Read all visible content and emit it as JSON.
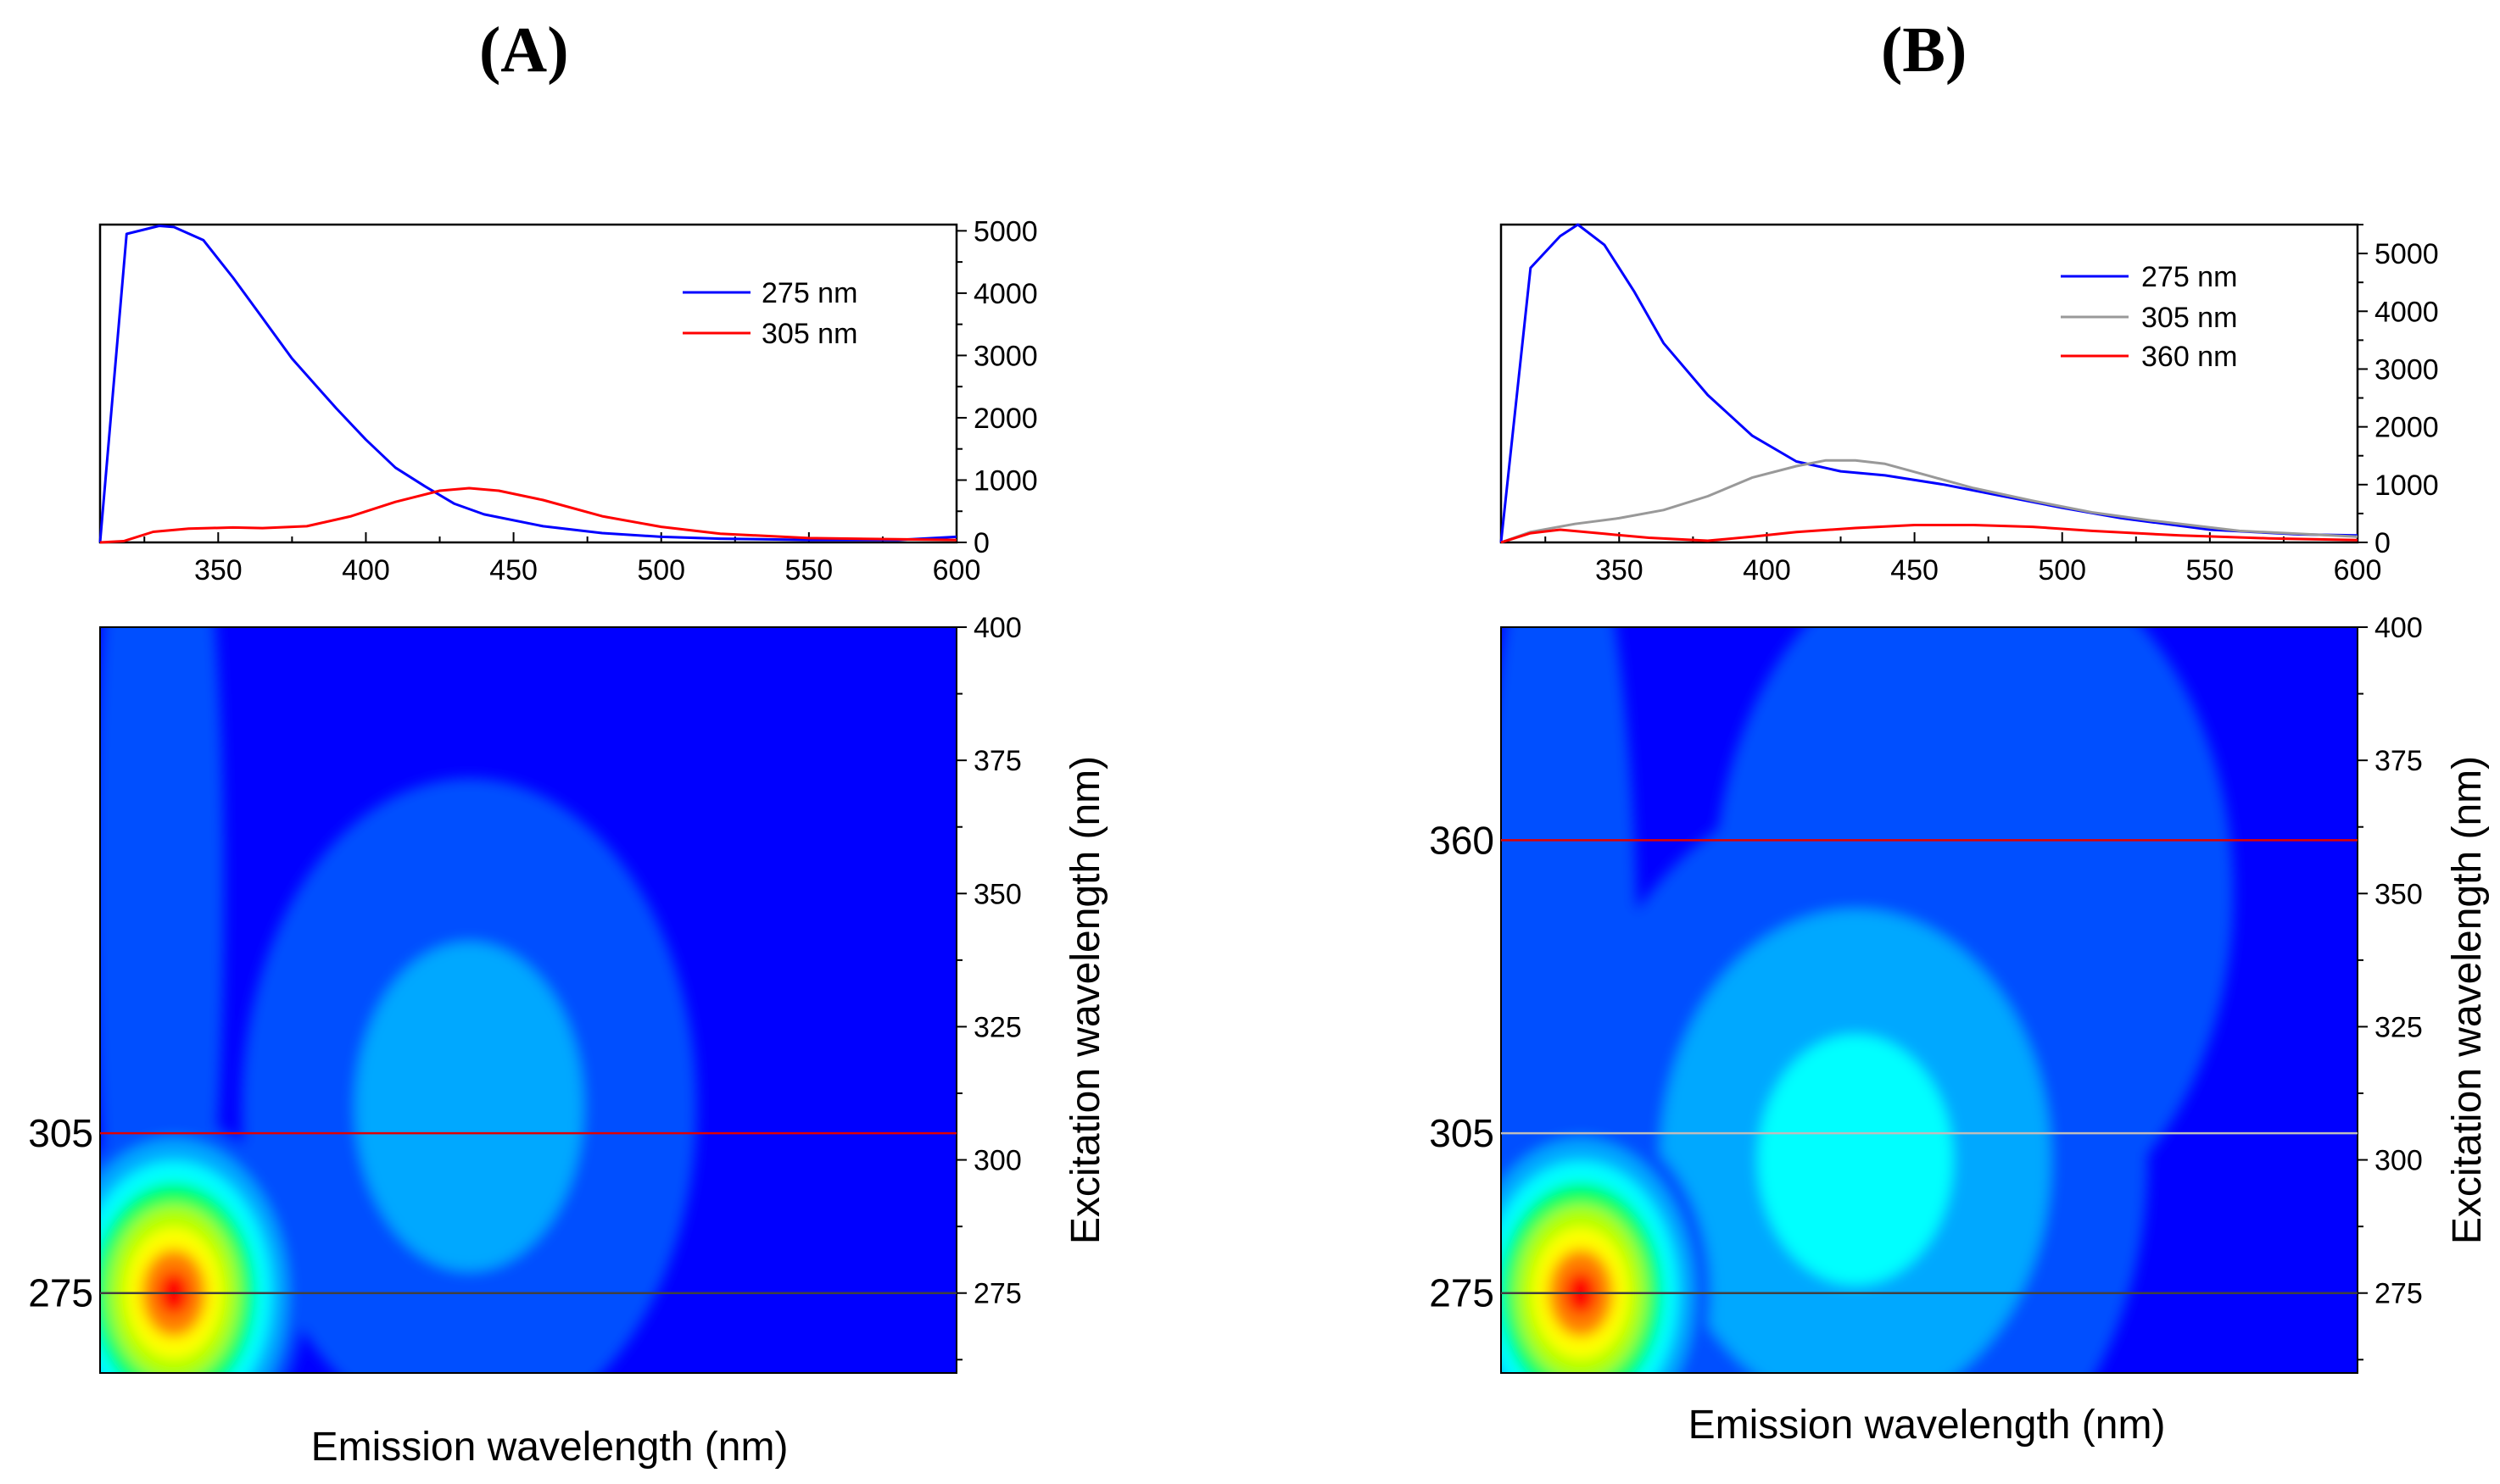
{
  "panels": [
    {
      "label": "(A)",
      "emission_xlabel": "Emission wavelength (nm)",
      "excitation_ylabel": "Excitation wavelength (nm)",
      "marker_lines": [
        {
          "value": 305,
          "label": "305",
          "color": "#e00000"
        },
        {
          "value": 275,
          "label": "275",
          "color": "#404040"
        }
      ]
    },
    {
      "label": "(B)",
      "emission_xlabel": "Emission wavelength (nm)",
      "excitation_ylabel": "Excitation wavelength (nm)",
      "marker_lines": [
        {
          "value": 360,
          "label": "360",
          "color": "#e00000"
        },
        {
          "value": 305,
          "label": "305",
          "color": "#bdbdbd"
        },
        {
          "value": 275,
          "label": "275",
          "color": "#404040"
        }
      ]
    }
  ],
  "chart_data": [
    {
      "id": "A-spectra",
      "type": "line",
      "xlim": [
        310,
        600
      ],
      "ylim": [
        0,
        5100
      ],
      "xticks": [
        350,
        400,
        450,
        500,
        550,
        600
      ],
      "yticks": [
        0,
        1000,
        2000,
        3000,
        4000,
        5000
      ],
      "legend_position": "top-right",
      "series": [
        {
          "name": "275 nm",
          "color": "#0000ff",
          "x": [
            310,
            319,
            330,
            335,
            345,
            355,
            365,
            375,
            390,
            400,
            410,
            420,
            430,
            440,
            460,
            480,
            500,
            520,
            550,
            580,
            600
          ],
          "y": [
            0,
            4950,
            5080,
            5060,
            4850,
            4250,
            3600,
            2950,
            2150,
            1650,
            1200,
            900,
            620,
            450,
            260,
            150,
            90,
            60,
            40,
            40,
            90
          ]
        },
        {
          "name": "305 nm",
          "color": "#ff0000",
          "x": [
            310,
            318,
            328,
            340,
            355,
            365,
            380,
            395,
            410,
            425,
            435,
            445,
            460,
            480,
            500,
            520,
            550,
            580,
            600
          ],
          "y": [
            0,
            20,
            170,
            220,
            240,
            230,
            260,
            420,
            650,
            830,
            870,
            830,
            680,
            420,
            250,
            140,
            70,
            50,
            40
          ]
        }
      ]
    },
    {
      "id": "B-spectra",
      "type": "line",
      "xlim": [
        310,
        600
      ],
      "ylim": [
        0,
        5500
      ],
      "xticks": [
        350,
        400,
        450,
        500,
        550,
        600
      ],
      "yticks": [
        0,
        1000,
        2000,
        3000,
        4000,
        5000
      ],
      "legend_position": "top-right",
      "series": [
        {
          "name": "275 nm",
          "color": "#0000ff",
          "x": [
            310,
            320,
            330,
            336,
            345,
            355,
            365,
            380,
            395,
            410,
            425,
            440,
            460,
            480,
            500,
            520,
            550,
            580,
            600
          ],
          "y": [
            0,
            4750,
            5300,
            5500,
            5150,
            4350,
            3450,
            2550,
            1850,
            1400,
            1230,
            1160,
            1000,
            800,
            600,
            420,
            220,
            140,
            120
          ]
        },
        {
          "name": "305 nm",
          "color": "#999999",
          "x": [
            310,
            320,
            335,
            350,
            365,
            380,
            395,
            410,
            420,
            430,
            440,
            455,
            470,
            490,
            510,
            530,
            560,
            600
          ],
          "y": [
            0,
            180,
            320,
            420,
            560,
            800,
            1120,
            1320,
            1420,
            1420,
            1360,
            1150,
            940,
            720,
            520,
            380,
            200,
            100
          ]
        },
        {
          "name": "360 nm",
          "color": "#ff0000",
          "x": [
            310,
            320,
            330,
            345,
            360,
            380,
            395,
            410,
            430,
            450,
            470,
            490,
            510,
            540,
            570,
            600
          ],
          "y": [
            0,
            160,
            220,
            150,
            80,
            30,
            100,
            180,
            250,
            300,
            300,
            270,
            200,
            120,
            70,
            40
          ]
        }
      ]
    },
    {
      "id": "A-eem",
      "type": "heatmap",
      "xlim": [
        310,
        600
      ],
      "ylim": [
        260,
        400
      ],
      "yticks": [
        275,
        300,
        325,
        350,
        375,
        400
      ],
      "xlabel": "Emission wavelength (nm)",
      "ylabel": "Excitation wavelength (nm)",
      "colormap": [
        "#0000ff",
        "#0050ff",
        "#00a8ff",
        "#00ffff",
        "#00ff60",
        "#b0ff00",
        "#ffff00",
        "#ff8000",
        "#ff0000"
      ],
      "peaks": [
        {
          "em": 335,
          "ex": 275,
          "intensity": 1.0,
          "sigma_em": 20,
          "sigma_ex": 15
        },
        {
          "em": 435,
          "ex": 310,
          "intensity": 0.26,
          "sigma_em": 35,
          "sigma_ex": 28
        },
        {
          "em": 330,
          "ex": 350,
          "intensity": 0.15,
          "sigma_em": 10,
          "sigma_ex": 45
        }
      ]
    },
    {
      "id": "B-eem",
      "type": "heatmap",
      "xlim": [
        310,
        600
      ],
      "ylim": [
        260,
        400
      ],
      "yticks": [
        275,
        300,
        325,
        350,
        375,
        400
      ],
      "xlabel": "Emission wavelength (nm)",
      "ylabel": "Excitation wavelength (nm)",
      "colormap": [
        "#0000ff",
        "#0050ff",
        "#00a8ff",
        "#00ffff",
        "#00ff60",
        "#b0ff00",
        "#ffff00",
        "#ff8000",
        "#ff0000"
      ],
      "peaks": [
        {
          "em": 337,
          "ex": 275,
          "intensity": 1.0,
          "sigma_em": 20,
          "sigma_ex": 15
        },
        {
          "em": 430,
          "ex": 300,
          "intensity": 0.42,
          "sigma_em": 45,
          "sigma_ex": 32
        },
        {
          "em": 470,
          "ex": 350,
          "intensity": 0.12,
          "sigma_em": 40,
          "sigma_ex": 30
        },
        {
          "em": 330,
          "ex": 330,
          "intensity": 0.14,
          "sigma_em": 12,
          "sigma_ex": 45
        }
      ]
    }
  ]
}
